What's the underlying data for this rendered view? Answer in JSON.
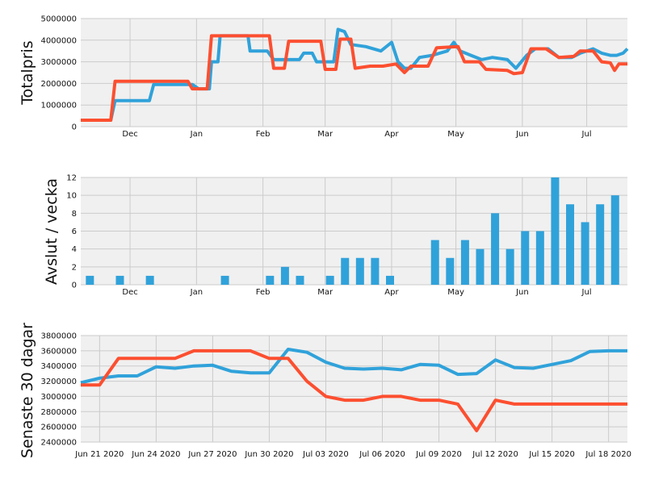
{
  "colors": {
    "series_blue": "#30a2da",
    "series_red": "#fc4f30",
    "background": "#f0f0f0",
    "grid": "#cbcbcb"
  },
  "chart_data": [
    {
      "type": "line",
      "ylabel": "Totalpris",
      "xlim": [
        "2019-11-08",
        "2020-07-20"
      ],
      "ylim": [
        0,
        5000000
      ],
      "x_tick_labels": [
        {
          "date": "2019-12-01",
          "label": "Dec"
        },
        {
          "date": "2020-01-01",
          "label": "Jan"
        },
        {
          "date": "2020-02-01",
          "label": "Feb"
        },
        {
          "date": "2020-03-01",
          "label": "Mar"
        },
        {
          "date": "2020-04-01",
          "label": "Apr"
        },
        {
          "date": "2020-05-01",
          "label": "May"
        },
        {
          "date": "2020-06-01",
          "label": "Jun"
        },
        {
          "date": "2020-07-01",
          "label": "Jul"
        }
      ],
      "y_ticks": [
        0,
        1000000,
        2000000,
        3000000,
        4000000,
        5000000
      ],
      "y_tick_labels": [
        "0",
        "1000000",
        "2000000",
        "3000000",
        "4000000",
        "5000000"
      ],
      "grid": true,
      "series": [
        {
          "color": "#30a2da",
          "points": [
            [
              "2019-11-08",
              300000
            ],
            [
              "2019-11-22",
              300000
            ],
            [
              "2019-11-24",
              1200000
            ],
            [
              "2019-12-10",
              1200000
            ],
            [
              "2019-12-12",
              1950000
            ],
            [
              "2019-12-30",
              1950000
            ],
            [
              "2020-01-02",
              1750000
            ],
            [
              "2020-01-07",
              1750000
            ],
            [
              "2020-01-08",
              3000000
            ],
            [
              "2020-01-11",
              3000000
            ],
            [
              "2020-01-12",
              4200000
            ],
            [
              "2020-01-25",
              4200000
            ],
            [
              "2020-01-26",
              3500000
            ],
            [
              "2020-02-03",
              3500000
            ],
            [
              "2020-02-06",
              3100000
            ],
            [
              "2020-02-18",
              3100000
            ],
            [
              "2020-02-20",
              3400000
            ],
            [
              "2020-02-24",
              3400000
            ],
            [
              "2020-02-26",
              3000000
            ],
            [
              "2020-03-05",
              3000000
            ],
            [
              "2020-03-07",
              4500000
            ],
            [
              "2020-03-10",
              4400000
            ],
            [
              "2020-03-13",
              3800000
            ],
            [
              "2020-03-20",
              3700000
            ],
            [
              "2020-03-27",
              3500000
            ],
            [
              "2020-04-01",
              3900000
            ],
            [
              "2020-04-04",
              3000000
            ],
            [
              "2020-04-07",
              2700000
            ],
            [
              "2020-04-10",
              2700000
            ],
            [
              "2020-04-14",
              3200000
            ],
            [
              "2020-04-20",
              3300000
            ],
            [
              "2020-04-27",
              3500000
            ],
            [
              "2020-04-30",
              3900000
            ],
            [
              "2020-05-03",
              3500000
            ],
            [
              "2020-05-08",
              3300000
            ],
            [
              "2020-05-13",
              3100000
            ],
            [
              "2020-05-18",
              3200000
            ],
            [
              "2020-05-25",
              3100000
            ],
            [
              "2020-05-29",
              2700000
            ],
            [
              "2020-06-03",
              3300000
            ],
            [
              "2020-06-07",
              3600000
            ],
            [
              "2020-06-13",
              3600000
            ],
            [
              "2020-06-18",
              3200000
            ],
            [
              "2020-06-24",
              3200000
            ],
            [
              "2020-06-28",
              3400000
            ],
            [
              "2020-07-04",
              3600000
            ],
            [
              "2020-07-08",
              3400000
            ],
            [
              "2020-07-12",
              3300000
            ],
            [
              "2020-07-15",
              3300000
            ],
            [
              "2020-07-18",
              3400000
            ],
            [
              "2020-07-20",
              3600000
            ]
          ]
        },
        {
          "color": "#fc4f30",
          "points": [
            [
              "2019-11-08",
              300000
            ],
            [
              "2019-11-22",
              300000
            ],
            [
              "2019-11-24",
              2100000
            ],
            [
              "2019-12-10",
              2100000
            ],
            [
              "2019-12-12",
              2100000
            ],
            [
              "2019-12-28",
              2100000
            ],
            [
              "2019-12-30",
              1750000
            ],
            [
              "2020-01-06",
              1750000
            ],
            [
              "2020-01-08",
              4200000
            ],
            [
              "2020-02-04",
              4200000
            ],
            [
              "2020-02-06",
              2700000
            ],
            [
              "2020-02-11",
              2700000
            ],
            [
              "2020-02-13",
              3950000
            ],
            [
              "2020-02-28",
              3950000
            ],
            [
              "2020-03-01",
              2650000
            ],
            [
              "2020-03-06",
              2650000
            ],
            [
              "2020-03-08",
              4050000
            ],
            [
              "2020-03-13",
              4050000
            ],
            [
              "2020-03-15",
              2700000
            ],
            [
              "2020-03-22",
              2800000
            ],
            [
              "2020-03-28",
              2800000
            ],
            [
              "2020-04-03",
              2900000
            ],
            [
              "2020-04-07",
              2500000
            ],
            [
              "2020-04-10",
              2800000
            ],
            [
              "2020-04-18",
              2800000
            ],
            [
              "2020-04-22",
              3650000
            ],
            [
              "2020-05-02",
              3700000
            ],
            [
              "2020-05-05",
              3000000
            ],
            [
              "2020-05-12",
              3000000
            ],
            [
              "2020-05-15",
              2650000
            ],
            [
              "2020-05-25",
              2600000
            ],
            [
              "2020-05-28",
              2450000
            ],
            [
              "2020-06-01",
              2500000
            ],
            [
              "2020-06-05",
              3600000
            ],
            [
              "2020-06-12",
              3600000
            ],
            [
              "2020-06-18",
              3200000
            ],
            [
              "2020-06-25",
              3250000
            ],
            [
              "2020-06-28",
              3500000
            ],
            [
              "2020-07-04",
              3500000
            ],
            [
              "2020-07-08",
              3000000
            ],
            [
              "2020-07-12",
              2950000
            ],
            [
              "2020-07-14",
              2600000
            ],
            [
              "2020-07-16",
              2900000
            ],
            [
              "2020-07-20",
              2900000
            ]
          ]
        }
      ]
    },
    {
      "type": "bar",
      "ylabel": "Avslut / vecka",
      "xlim": [
        "2019-11-08",
        "2020-07-20"
      ],
      "ylim": [
        0,
        12
      ],
      "x_tick_labels": [
        {
          "date": "2019-12-01",
          "label": "Dec"
        },
        {
          "date": "2020-01-01",
          "label": "Jan"
        },
        {
          "date": "2020-02-01",
          "label": "Feb"
        },
        {
          "date": "2020-03-01",
          "label": "Mar"
        },
        {
          "date": "2020-04-01",
          "label": "Apr"
        },
        {
          "date": "2020-05-01",
          "label": "May"
        },
        {
          "date": "2020-06-01",
          "label": "Jun"
        },
        {
          "date": "2020-07-01",
          "label": "Jul"
        }
      ],
      "y_ticks": [
        0,
        2,
        4,
        6,
        8,
        10,
        12
      ],
      "y_tick_labels": [
        "0",
        "2",
        "4",
        "6",
        "8",
        "10",
        "12"
      ],
      "grid": true,
      "bar_color": "#30a2da",
      "bars": [
        {
          "week": "2019-11-10",
          "value": 1
        },
        {
          "week": "2019-11-24",
          "value": 1
        },
        {
          "week": "2019-12-08",
          "value": 1
        },
        {
          "week": "2020-01-12",
          "value": 1
        },
        {
          "week": "2020-02-02",
          "value": 1
        },
        {
          "week": "2020-02-09",
          "value": 2
        },
        {
          "week": "2020-02-16",
          "value": 1
        },
        {
          "week": "2020-03-01",
          "value": 1
        },
        {
          "week": "2020-03-08",
          "value": 3
        },
        {
          "week": "2020-03-15",
          "value": 3
        },
        {
          "week": "2020-03-22",
          "value": 3
        },
        {
          "week": "2020-03-29",
          "value": 1
        },
        {
          "week": "2020-04-19",
          "value": 5
        },
        {
          "week": "2020-04-26",
          "value": 3
        },
        {
          "week": "2020-05-03",
          "value": 5
        },
        {
          "week": "2020-05-10",
          "value": 4
        },
        {
          "week": "2020-05-17",
          "value": 8
        },
        {
          "week": "2020-05-24",
          "value": 4
        },
        {
          "week": "2020-05-31",
          "value": 6
        },
        {
          "week": "2020-06-07",
          "value": 6
        },
        {
          "week": "2020-06-14",
          "value": 12
        },
        {
          "week": "2020-06-21",
          "value": 9
        },
        {
          "week": "2020-06-28",
          "value": 7
        },
        {
          "week": "2020-07-05",
          "value": 9
        },
        {
          "week": "2020-07-12",
          "value": 10
        }
      ]
    },
    {
      "type": "line",
      "ylabel": "Senaste 30 dagar",
      "xlim": [
        "2020-06-20",
        "2020-07-19"
      ],
      "ylim": [
        2400000,
        3800000
      ],
      "x_tick_labels": [
        {
          "date": "2020-06-21",
          "label": "Jun 21 2020"
        },
        {
          "date": "2020-06-24",
          "label": "Jun 24 2020"
        },
        {
          "date": "2020-06-27",
          "label": "Jun 27 2020"
        },
        {
          "date": "2020-06-30",
          "label": "Jun 30 2020"
        },
        {
          "date": "2020-07-03",
          "label": "Jul 03 2020"
        },
        {
          "date": "2020-07-06",
          "label": "Jul 06 2020"
        },
        {
          "date": "2020-07-09",
          "label": "Jul 09 2020"
        },
        {
          "date": "2020-07-12",
          "label": "Jul 12 2020"
        },
        {
          "date": "2020-07-15",
          "label": "Jul 15 2020"
        },
        {
          "date": "2020-07-18",
          "label": "Jul 18 2020"
        }
      ],
      "y_ticks": [
        2400000,
        2600000,
        2800000,
        3000000,
        3200000,
        3400000,
        3600000,
        3800000
      ],
      "y_tick_labels": [
        "2400000",
        "2600000",
        "2800000",
        "3000000",
        "3200000",
        "3400000",
        "3600000",
        "3800000"
      ],
      "grid": true,
      "series": [
        {
          "color": "#30a2da",
          "points": [
            [
              "2020-06-20",
              3180000
            ],
            [
              "2020-06-21",
              3240000
            ],
            [
              "2020-06-22",
              3270000
            ],
            [
              "2020-06-23",
              3270000
            ],
            [
              "2020-06-24",
              3390000
            ],
            [
              "2020-06-25",
              3370000
            ],
            [
              "2020-06-26",
              3400000
            ],
            [
              "2020-06-27",
              3410000
            ],
            [
              "2020-06-28",
              3330000
            ],
            [
              "2020-06-29",
              3310000
            ],
            [
              "2020-06-30",
              3310000
            ],
            [
              "2020-07-01",
              3620000
            ],
            [
              "2020-07-02",
              3580000
            ],
            [
              "2020-07-03",
              3450000
            ],
            [
              "2020-07-04",
              3370000
            ],
            [
              "2020-07-05",
              3360000
            ],
            [
              "2020-07-06",
              3370000
            ],
            [
              "2020-07-07",
              3350000
            ],
            [
              "2020-07-08",
              3420000
            ],
            [
              "2020-07-09",
              3410000
            ],
            [
              "2020-07-10",
              3290000
            ],
            [
              "2020-07-11",
              3300000
            ],
            [
              "2020-07-12",
              3480000
            ],
            [
              "2020-07-13",
              3380000
            ],
            [
              "2020-07-14",
              3370000
            ],
            [
              "2020-07-15",
              3420000
            ],
            [
              "2020-07-16",
              3470000
            ],
            [
              "2020-07-17",
              3590000
            ],
            [
              "2020-07-18",
              3600000
            ],
            [
              "2020-07-19",
              3600000
            ]
          ]
        },
        {
          "color": "#fc4f30",
          "points": [
            [
              "2020-06-20",
              3150000
            ],
            [
              "2020-06-21",
              3150000
            ],
            [
              "2020-06-22",
              3500000
            ],
            [
              "2020-06-23",
              3500000
            ],
            [
              "2020-06-24",
              3500000
            ],
            [
              "2020-06-25",
              3500000
            ],
            [
              "2020-06-26",
              3600000
            ],
            [
              "2020-06-27",
              3600000
            ],
            [
              "2020-06-28",
              3600000
            ],
            [
              "2020-06-29",
              3600000
            ],
            [
              "2020-06-30",
              3500000
            ],
            [
              "2020-07-01",
              3500000
            ],
            [
              "2020-07-02",
              3200000
            ],
            [
              "2020-07-03",
              3000000
            ],
            [
              "2020-07-04",
              2950000
            ],
            [
              "2020-07-05",
              2950000
            ],
            [
              "2020-07-06",
              3000000
            ],
            [
              "2020-07-07",
              3000000
            ],
            [
              "2020-07-08",
              2950000
            ],
            [
              "2020-07-09",
              2950000
            ],
            [
              "2020-07-10",
              2900000
            ],
            [
              "2020-07-11",
              2550000
            ],
            [
              "2020-07-12",
              2950000
            ],
            [
              "2020-07-13",
              2900000
            ],
            [
              "2020-07-14",
              2900000
            ],
            [
              "2020-07-15",
              2900000
            ],
            [
              "2020-07-16",
              2900000
            ],
            [
              "2020-07-17",
              2900000
            ],
            [
              "2020-07-18",
              2900000
            ],
            [
              "2020-07-19",
              2900000
            ]
          ]
        }
      ]
    }
  ]
}
